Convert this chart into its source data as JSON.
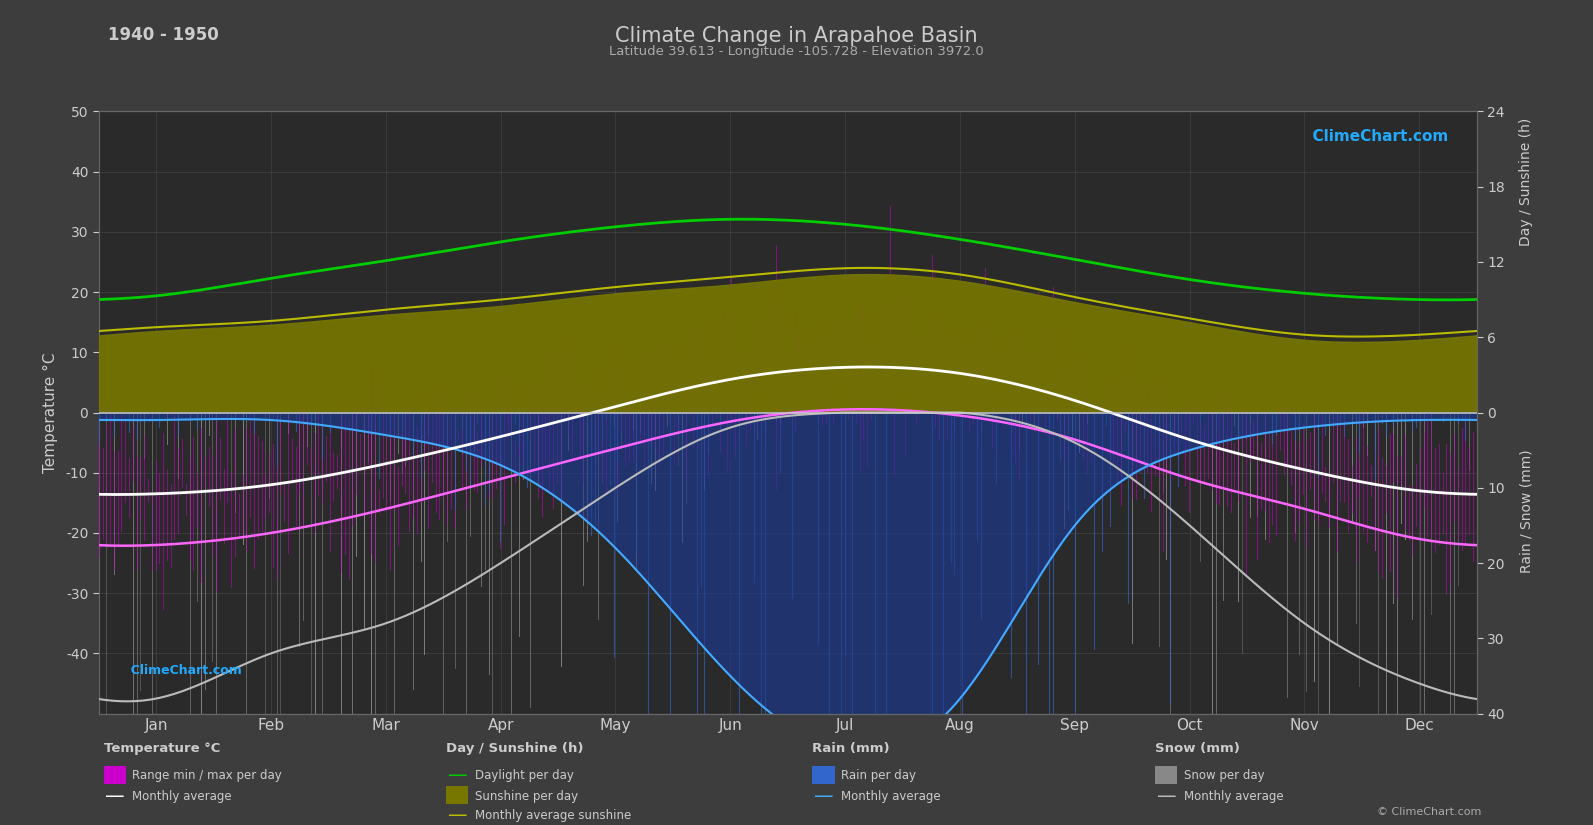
{
  "title": "Climate Change in Arapahoe Basin",
  "subtitle": "Latitude 39.613 - Longitude -105.728 - Elevation 3972.0",
  "period": "1940 - 1950",
  "bg_color": "#3d3d3d",
  "plot_bg_color": "#2a2a2a",
  "text_color": "#cccccc",
  "grid_color": "#555555",
  "months": [
    "Jan",
    "Feb",
    "Mar",
    "Apr",
    "May",
    "Jun",
    "Jul",
    "Aug",
    "Sep",
    "Oct",
    "Nov",
    "Dec"
  ],
  "temp_avg_monthly": [
    -13.5,
    -12.0,
    -8.5,
    -4.0,
    1.0,
    5.5,
    7.5,
    6.5,
    2.0,
    -4.5,
    -9.5,
    -13.0
  ],
  "temp_min_avg": [
    -22,
    -20,
    -16,
    -11,
    -6,
    -1.5,
    0.5,
    -0.5,
    -4.5,
    -11,
    -16,
    -21
  ],
  "temp_max_avg": [
    -5,
    -3,
    0.5,
    4.5,
    8.0,
    13.0,
    15.0,
    14.0,
    9.0,
    1.5,
    -3.5,
    -5.0
  ],
  "daylight_hours": [
    9.3,
    10.7,
    12.1,
    13.6,
    14.8,
    15.4,
    15.0,
    13.8,
    12.2,
    10.6,
    9.5,
    9.0
  ],
  "sunshine_hours": [
    6.5,
    7.0,
    7.8,
    8.5,
    9.5,
    10.2,
    11.0,
    10.5,
    8.8,
    7.2,
    5.8,
    5.8
  ],
  "sunshine_avg": [
    6.8,
    7.3,
    8.2,
    9.0,
    10.0,
    10.8,
    11.5,
    11.0,
    9.2,
    7.5,
    6.2,
    6.2
  ],
  "rain_monthly_mm": [
    1,
    1,
    3,
    7,
    18,
    35,
    45,
    38,
    15,
    5,
    2,
    1
  ],
  "snow_monthly_mm": [
    38,
    32,
    28,
    20,
    10,
    2,
    0,
    0,
    4,
    15,
    28,
    36
  ],
  "colors": {
    "daylight_line": "#00cc00",
    "sunshine_fill": "#777700",
    "sunshine_line": "#bbbb00",
    "rain_fill": "#2255cc",
    "rain_line": "#44aaff",
    "snow_line": "#aaaaaa",
    "temp_range_fill_top": "#dd77aa",
    "temp_range_fill_bot": "#cc00cc",
    "temp_min_line": "#ff66ff",
    "temp_avg_line": "#ffffff",
    "rain_avg_line": "#44aaff",
    "snow_avg_line": "#bbbbbb",
    "zero_line": "#dddddd"
  }
}
